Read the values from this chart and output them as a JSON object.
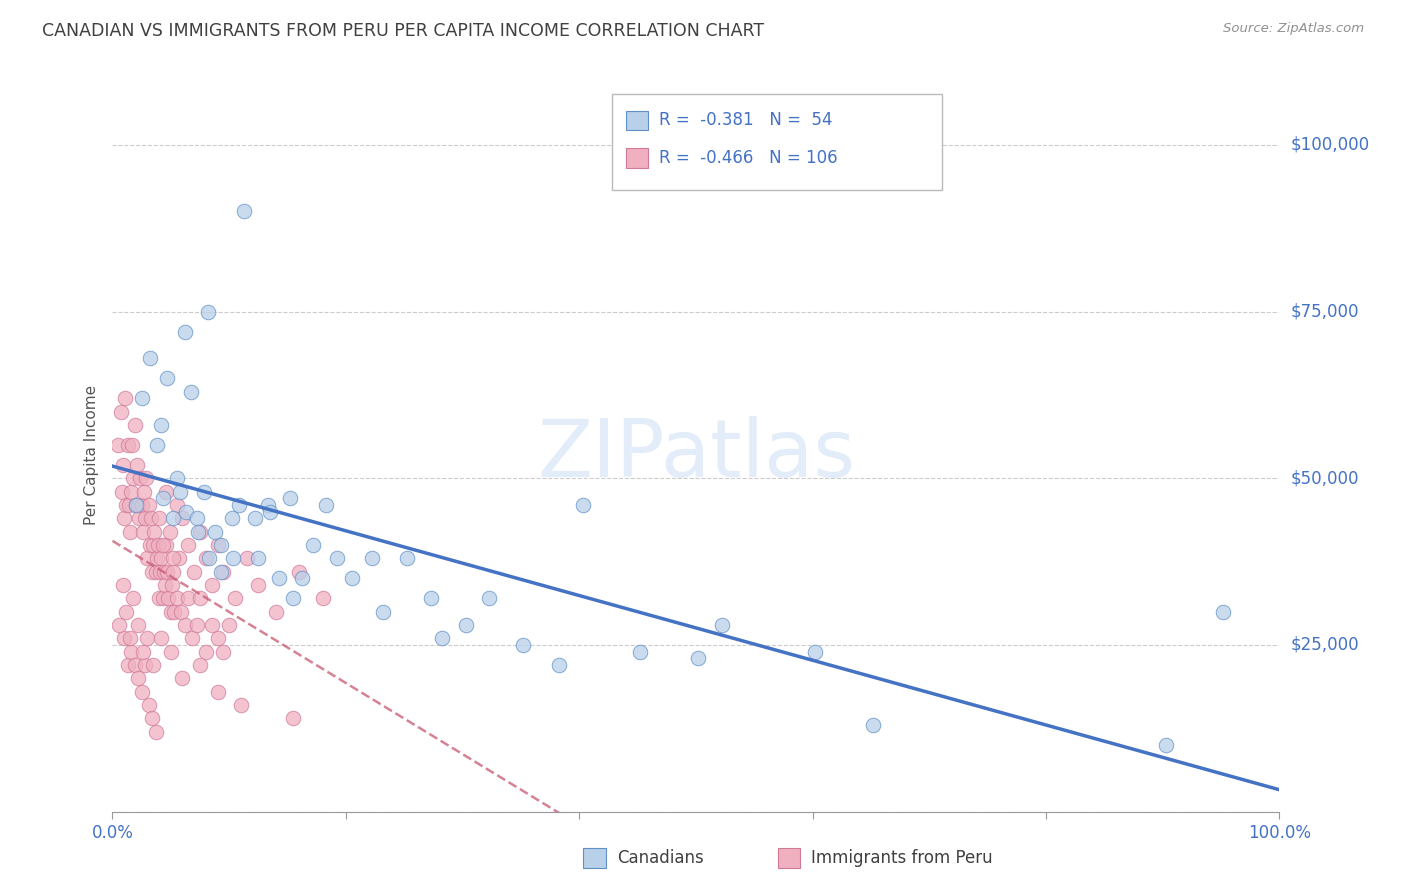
{
  "title": "CANADIAN VS IMMIGRANTS FROM PERU PER CAPITA INCOME CORRELATION CHART",
  "source": "Source: ZipAtlas.com",
  "ylabel": "Per Capita Income",
  "xtick_left": "0.0%",
  "xtick_right": "100.0%",
  "ytick_values": [
    0,
    25000,
    50000,
    75000,
    100000
  ],
  "ytick_labels": [
    "",
    "$25,000",
    "$50,000",
    "$75,000",
    "$100,000"
  ],
  "ymax": 107000,
  "watermark": "ZIPatlas",
  "legend_row1": "R =  -0.381   N =  54",
  "legend_row2": "R =  -0.466   N = 106",
  "bottom_leg_1": "Canadians",
  "bottom_leg_2": "Immigrants from Peru",
  "color_can_fill": "#b8d0e8",
  "color_can_edge": "#6090c8",
  "color_peru_fill": "#f0b0c0",
  "color_peru_edge": "#d07898",
  "color_line_can": "#4472c4",
  "color_line_peru": "#c85870",
  "color_blue": "#4472c4",
  "color_title": "#404040",
  "color_source": "#909090",
  "color_grid": "#cccccc",
  "color_watermark": "#ccddf5",
  "canadians_x": [
    0.02,
    0.025,
    0.032,
    0.038,
    0.042,
    0.043,
    0.047,
    0.052,
    0.055,
    0.058,
    0.062,
    0.063,
    0.067,
    0.072,
    0.073,
    0.078,
    0.082,
    0.083,
    0.088,
    0.093,
    0.093,
    0.102,
    0.103,
    0.108,
    0.113,
    0.122,
    0.125,
    0.133,
    0.135,
    0.143,
    0.152,
    0.155,
    0.162,
    0.172,
    0.183,
    0.192,
    0.205,
    0.222,
    0.232,
    0.252,
    0.273,
    0.282,
    0.303,
    0.323,
    0.352,
    0.383,
    0.403,
    0.452,
    0.502,
    0.522,
    0.602,
    0.652,
    0.903,
    0.952
  ],
  "canadians_y": [
    46000,
    62000,
    68000,
    55000,
    58000,
    47000,
    65000,
    44000,
    50000,
    48000,
    72000,
    45000,
    63000,
    44000,
    42000,
    48000,
    75000,
    38000,
    42000,
    40000,
    36000,
    44000,
    38000,
    46000,
    90000,
    44000,
    38000,
    46000,
    45000,
    35000,
    47000,
    32000,
    35000,
    40000,
    46000,
    38000,
    35000,
    38000,
    30000,
    38000,
    32000,
    26000,
    28000,
    32000,
    25000,
    22000,
    46000,
    24000,
    23000,
    28000,
    24000,
    13000,
    10000,
    30000
  ],
  "peru_x": [
    0.005,
    0.007,
    0.008,
    0.009,
    0.01,
    0.011,
    0.012,
    0.013,
    0.014,
    0.015,
    0.016,
    0.017,
    0.018,
    0.019,
    0.02,
    0.021,
    0.022,
    0.023,
    0.024,
    0.025,
    0.026,
    0.027,
    0.028,
    0.029,
    0.03,
    0.031,
    0.032,
    0.033,
    0.034,
    0.035,
    0.036,
    0.037,
    0.038,
    0.039,
    0.04,
    0.041,
    0.042,
    0.043,
    0.044,
    0.045,
    0.046,
    0.047,
    0.048,
    0.05,
    0.051,
    0.052,
    0.053,
    0.055,
    0.057,
    0.059,
    0.062,
    0.065,
    0.068,
    0.072,
    0.075,
    0.08,
    0.085,
    0.09,
    0.095,
    0.1,
    0.01,
    0.013,
    0.016,
    0.019,
    0.022,
    0.025,
    0.028,
    0.031,
    0.034,
    0.037,
    0.04,
    0.043,
    0.046,
    0.049,
    0.052,
    0.055,
    0.06,
    0.065,
    0.07,
    0.075,
    0.08,
    0.085,
    0.09,
    0.095,
    0.105,
    0.115,
    0.125,
    0.14,
    0.16,
    0.18,
    0.006,
    0.009,
    0.012,
    0.015,
    0.018,
    0.022,
    0.026,
    0.03,
    0.035,
    0.042,
    0.05,
    0.06,
    0.075,
    0.09,
    0.11,
    0.155
  ],
  "peru_y": [
    55000,
    60000,
    48000,
    52000,
    44000,
    62000,
    46000,
    55000,
    46000,
    42000,
    48000,
    55000,
    50000,
    58000,
    46000,
    52000,
    46000,
    44000,
    50000,
    46000,
    42000,
    48000,
    44000,
    50000,
    38000,
    46000,
    40000,
    44000,
    36000,
    40000,
    42000,
    36000,
    38000,
    40000,
    32000,
    36000,
    38000,
    32000,
    36000,
    34000,
    40000,
    36000,
    32000,
    30000,
    34000,
    36000,
    30000,
    32000,
    38000,
    30000,
    28000,
    32000,
    26000,
    28000,
    32000,
    24000,
    28000,
    26000,
    24000,
    28000,
    26000,
    22000,
    24000,
    22000,
    20000,
    18000,
    22000,
    16000,
    14000,
    12000,
    44000,
    40000,
    48000,
    42000,
    38000,
    46000,
    44000,
    40000,
    36000,
    42000,
    38000,
    34000,
    40000,
    36000,
    32000,
    38000,
    34000,
    30000,
    36000,
    32000,
    28000,
    34000,
    30000,
    26000,
    32000,
    28000,
    24000,
    26000,
    22000,
    26000,
    24000,
    20000,
    22000,
    18000,
    16000,
    14000
  ]
}
